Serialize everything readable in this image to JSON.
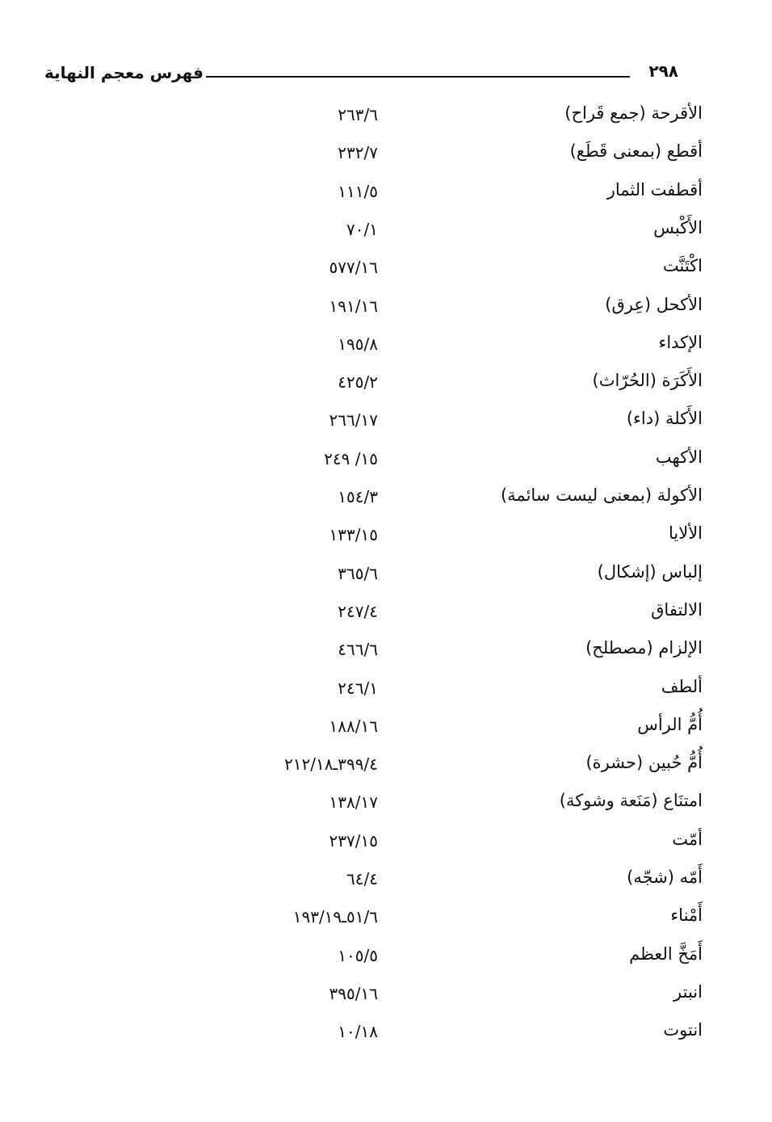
{
  "header": {
    "title": "فهرس معجم النهاية",
    "page_number": "٢٩٨"
  },
  "entries": [
    {
      "term": "الأقرحة (جمع قَراح)",
      "ref": "٢٦٣/٦"
    },
    {
      "term": "أقطع (بمعنى قَطَع)",
      "ref": "٢٣٢/٧"
    },
    {
      "term": "أقطفت الثمار",
      "ref": "١١١/٥"
    },
    {
      "term": "الأَكْبس",
      "ref": "٧٠/١"
    },
    {
      "term": "اكْتَنَّت",
      "ref": "٥٧٧/١٦"
    },
    {
      "term": "الأكحل (عِرق)",
      "ref": "١٩١/١٦"
    },
    {
      "term": "الإكداء",
      "ref": "١٩٥/٨"
    },
    {
      "term": "الأَكَرَة (الحُرّاث)",
      "ref": "٤٢٥/٢"
    },
    {
      "term": "الأَكلة (داء)",
      "ref": "٢٦٦/١٧"
    },
    {
      "term": "الأكهب",
      "ref": "٢٤٩ /١٥"
    },
    {
      "term": "الأكولة (بمعنى ليست سائمة)",
      "ref": "١٥٤/٣"
    },
    {
      "term": "الألايا",
      "ref": "١٣٣/١٥"
    },
    {
      "term": "إلباس (إشكال)",
      "ref": "٣٦٥/٦"
    },
    {
      "term": "الالتفاق",
      "ref": "٢٤٧/٤"
    },
    {
      "term": "الإلزام (مصطلح)",
      "ref": "٤٦٦/٦"
    },
    {
      "term": "ألطف",
      "ref": "٢٤٦/١"
    },
    {
      "term": "أُمُّ الرأس",
      "ref": "١٨٨/١٦"
    },
    {
      "term": "أُمُّ حُبين (حشرة)",
      "ref": "٢١٢/١٨ـ٣٩٩/٤"
    },
    {
      "term": "امتنَاع (مَنَعة وشوكة)",
      "ref": "١٣٨/١٧"
    },
    {
      "term": "أمّت",
      "ref": "٢٣٧/١٥"
    },
    {
      "term": "أَمّه (شجّه)",
      "ref": "٦٤/٤"
    },
    {
      "term": "أَمْناء",
      "ref": "١٩٣/١٩ـ٥١/٦"
    },
    {
      "term": "أَمَخَّ العظم",
      "ref": "١٠٥/٥"
    },
    {
      "term": "انبتر",
      "ref": "٣٩٥/١٦"
    },
    {
      "term": "انتوت",
      "ref": "١٠/١٨"
    }
  ]
}
